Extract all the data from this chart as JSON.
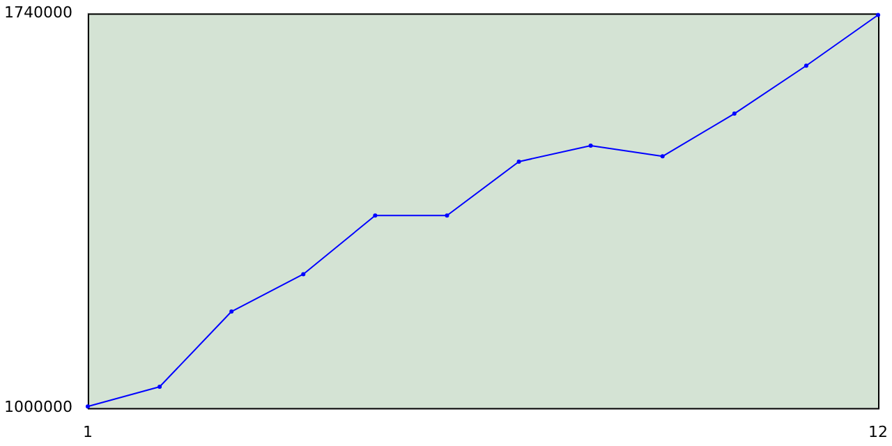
{
  "chart_data": {
    "type": "line",
    "x": [
      1,
      2,
      3,
      4,
      5,
      6,
      7,
      8,
      9,
      10,
      11,
      12
    ],
    "series": [
      {
        "color": "#0000ff",
        "values": [
          1003000,
          1040000,
          1181000,
          1251000,
          1361000,
          1361000,
          1462000,
          1492000,
          1472000,
          1552000,
          1642000,
          1737000
        ]
      }
    ],
    "xlim": [
      1,
      12
    ],
    "xticks": [
      1,
      12
    ],
    "ylim": [
      1000000,
      1740000
    ],
    "yticks": [
      1000000,
      1740000
    ],
    "grid": false,
    "legend": false,
    "marker": "circle",
    "line_style": "solid"
  }
}
